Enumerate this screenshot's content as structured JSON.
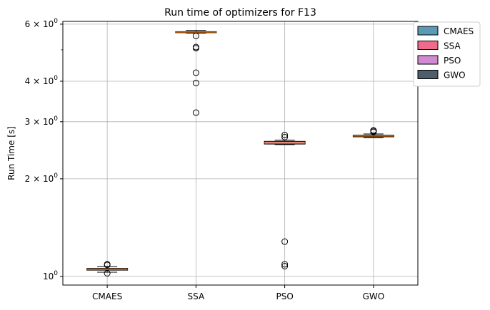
{
  "chart_data": {
    "type": "box",
    "title": "Run time of optimizers for F13",
    "ylabel": "Run Time [s]",
    "xlabel": "",
    "yscale": "log",
    "ylim": [
      0.94,
      6.12
    ],
    "grid": true,
    "categories": [
      "CMAES",
      "SSA",
      "PSO",
      "GWO"
    ],
    "colors": [
      "#5b9ab5",
      "#f06a8c",
      "#d08ad0",
      "#4d5f6b"
    ],
    "legend": {
      "placement": "outside-top-right",
      "entries": [
        "CMAES",
        "SSA",
        "PSO",
        "GWO"
      ]
    },
    "yticks": [
      {
        "value": 1,
        "base": "10",
        "exp": "0"
      },
      {
        "value": 2,
        "base": "2 × 10",
        "exp": "0"
      },
      {
        "value": 3,
        "base": "3 × 10",
        "exp": "0"
      },
      {
        "value": 4,
        "base": "4 × 10",
        "exp": "0"
      },
      {
        "value": 6,
        "base": "6 × 10",
        "exp": "0"
      }
    ],
    "yminorticks": [
      5
    ],
    "boxes": [
      {
        "name": "CMAES",
        "whislo": 1.03,
        "q1": 1.045,
        "med": 1.052,
        "q3": 1.058,
        "whishi": 1.072,
        "fliers": [
          1.022,
          1.084,
          1.09
        ]
      },
      {
        "name": "SSA",
        "whislo": 5.63,
        "q1": 5.65,
        "med": 5.67,
        "q3": 5.69,
        "whishi": 5.74,
        "fliers": [
          5.52,
          5.1,
          5.06,
          4.25,
          3.95,
          3.2
        ]
      },
      {
        "name": "PSO",
        "whislo": 2.55,
        "q1": 2.56,
        "med": 2.58,
        "q3": 2.61,
        "whishi": 2.63,
        "fliers": [
          2.73,
          2.69,
          1.28,
          1.09,
          1.075
        ]
      },
      {
        "name": "GWO",
        "whislo": 2.68,
        "q1": 2.695,
        "med": 2.71,
        "q3": 2.725,
        "whishi": 2.75,
        "fliers": [
          2.79,
          2.81,
          2.82
        ]
      }
    ]
  }
}
